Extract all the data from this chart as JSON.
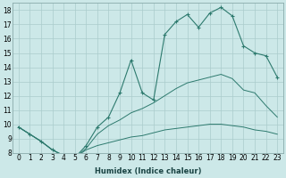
{
  "bg_color": "#cce8e8",
  "grid_color": "#aacccc",
  "line_color": "#2d7a6e",
  "xlabel": "Humidex (Indice chaleur)",
  "ylim": [
    8,
    18.5
  ],
  "xlim": [
    -0.5,
    23.5
  ],
  "yticks": [
    8,
    9,
    10,
    11,
    12,
    13,
    14,
    15,
    16,
    17,
    18
  ],
  "xticks": [
    0,
    1,
    2,
    3,
    4,
    5,
    6,
    7,
    8,
    9,
    10,
    11,
    12,
    13,
    14,
    15,
    16,
    17,
    18,
    19,
    20,
    21,
    22,
    23
  ],
  "main_y": [
    9.8,
    9.3,
    8.8,
    8.2,
    7.8,
    7.65,
    8.5,
    9.8,
    10.5,
    12.2,
    14.5,
    12.2,
    11.7,
    16.3,
    17.2,
    17.7,
    16.8,
    17.8,
    18.2,
    17.6,
    15.5,
    15.0,
    14.8,
    13.3
  ],
  "upper_y": [
    9.8,
    9.3,
    8.8,
    8.2,
    7.8,
    7.65,
    8.3,
    9.3,
    9.9,
    10.3,
    10.8,
    11.1,
    11.5,
    12.0,
    12.5,
    12.9,
    13.1,
    13.3,
    13.5,
    13.2,
    12.4,
    12.2,
    11.3,
    10.5
  ],
  "lower_y": [
    9.8,
    9.3,
    8.8,
    8.2,
    7.8,
    7.65,
    8.2,
    8.5,
    8.7,
    8.9,
    9.1,
    9.2,
    9.4,
    9.6,
    9.7,
    9.8,
    9.9,
    10.0,
    10.0,
    9.9,
    9.8,
    9.6,
    9.5,
    9.3
  ],
  "xlabel_fontsize": 6.0,
  "tick_fontsize": 5.5
}
